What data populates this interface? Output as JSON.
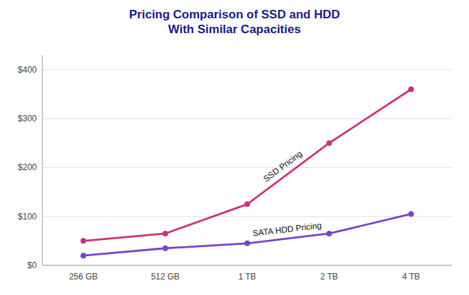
{
  "chart_data": {
    "type": "line",
    "title": "Pricing Comparison of SSD and HDD\nWith Similar Capacities",
    "title_color": "#1a1a88",
    "categories": [
      "256 GB",
      "512 GB",
      "1 TB",
      "2 TB",
      "4 TB"
    ],
    "series": [
      {
        "name": "SSD Pricing",
        "color": "#cc3377",
        "values": [
          50,
          65,
          125,
          250,
          360
        ]
      },
      {
        "name": "SATA  HDD Pricing",
        "color": "#7744cc",
        "values": [
          20,
          35,
          45,
          65,
          105
        ]
      }
    ],
    "ylim": [
      0,
      430
    ],
    "yticks": [
      {
        "value": 0,
        "label": "$0"
      },
      {
        "value": 100,
        "label": "$100"
      },
      {
        "value": 200,
        "label": "$200"
      },
      {
        "value": 300,
        "label": "$300"
      },
      {
        "value": 400,
        "label": "$400"
      }
    ],
    "grid": true,
    "marker": "circle"
  }
}
